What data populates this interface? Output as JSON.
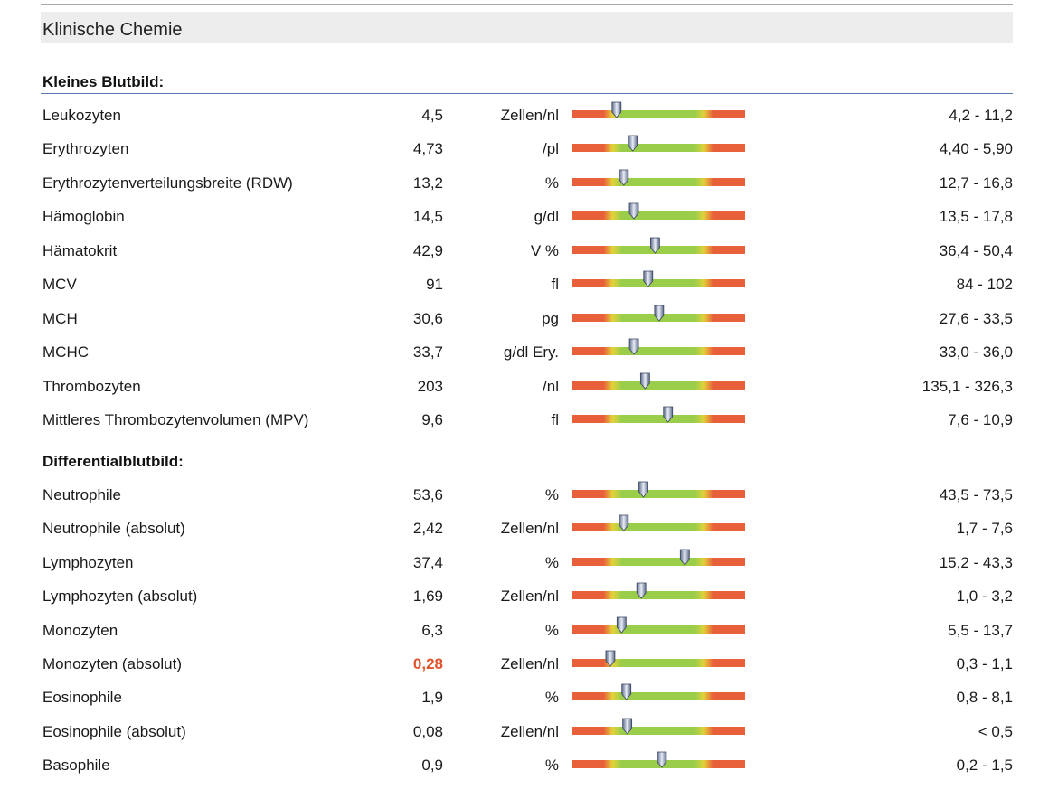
{
  "header": {
    "title": "Klinische Chemie"
  },
  "sections": [
    {
      "title": "Kleines Blutbild:",
      "rows": [
        {
          "name": "Leukozyten",
          "value": "4,5",
          "unit": "Zellen/nl",
          "ref": "4,2 - 11,2",
          "low": 4.2,
          "high": 11.2,
          "num": 4.5,
          "flag": false
        },
        {
          "name": "Erythrozyten",
          "value": "4,73",
          "unit": "/pl",
          "ref": "4,40 - 5,90",
          "low": 4.4,
          "high": 5.9,
          "num": 4.73,
          "flag": false
        },
        {
          "name": "Erythrozytenverteilungsbreite (RDW)",
          "value": "13,2",
          "unit": "%",
          "ref": "12,7 - 16,8",
          "low": 12.7,
          "high": 16.8,
          "num": 13.2,
          "flag": false
        },
        {
          "name": "Hämoglobin",
          "value": "14,5",
          "unit": "g/dl",
          "ref": "13,5 - 17,8",
          "low": 13.5,
          "high": 17.8,
          "num": 14.5,
          "flag": false
        },
        {
          "name": "Hämatokrit",
          "value": "42,9",
          "unit": "V %",
          "ref": "36,4 - 50,4",
          "low": 36.4,
          "high": 50.4,
          "num": 42.9,
          "flag": false
        },
        {
          "name": "MCV",
          "value": "91",
          "unit": "fl",
          "ref": "84 - 102",
          "low": 84,
          "high": 102,
          "num": 91,
          "flag": false
        },
        {
          "name": "MCH",
          "value": "30,6",
          "unit": "pg",
          "ref": "27,6 - 33,5",
          "low": 27.6,
          "high": 33.5,
          "num": 30.6,
          "flag": false
        },
        {
          "name": "MCHC",
          "value": "33,7",
          "unit": "g/dl Ery.",
          "ref": "33,0 - 36,0",
          "low": 33.0,
          "high": 36.0,
          "num": 33.7,
          "flag": false
        },
        {
          "name": "Thrombozyten",
          "value": "203",
          "unit": "/nl",
          "ref": "135,1 - 326,3",
          "low": 135.1,
          "high": 326.3,
          "num": 203,
          "flag": false
        },
        {
          "name": "Mittleres Thrombozytenvolumen (MPV)",
          "value": "9,6",
          "unit": "fl",
          "ref": "7,6 - 10,9",
          "low": 7.6,
          "high": 10.9,
          "num": 9.6,
          "flag": false
        }
      ]
    },
    {
      "title": "Differentialblutbild:",
      "rows": [
        {
          "name": "Neutrophile",
          "value": "53,6",
          "unit": "%",
          "ref": "43,5 - 73,5",
          "low": 43.5,
          "high": 73.5,
          "num": 53.6,
          "flag": false
        },
        {
          "name": "Neutrophile (absolut)",
          "value": "2,42",
          "unit": "Zellen/nl",
          "ref": "1,7 - 7,6",
          "low": 1.7,
          "high": 7.6,
          "num": 2.42,
          "flag": false
        },
        {
          "name": "Lymphozyten",
          "value": "37,4",
          "unit": "%",
          "ref": "15,2 - 43,3",
          "low": 15.2,
          "high": 43.3,
          "num": 37.4,
          "flag": false
        },
        {
          "name": "Lymphozyten (absolut)",
          "value": "1,69",
          "unit": "Zellen/nl",
          "ref": "1,0 - 3,2",
          "low": 1.0,
          "high": 3.2,
          "num": 1.69,
          "flag": false
        },
        {
          "name": "Monozyten",
          "value": "6,3",
          "unit": "%",
          "ref": "5,5 - 13,7",
          "low": 5.5,
          "high": 13.7,
          "num": 6.3,
          "flag": false
        },
        {
          "name": "Monozyten (absolut)",
          "value": "0,28",
          "unit": "Zellen/nl",
          "ref": "0,3 - 1,1",
          "low": 0.3,
          "high": 1.1,
          "num": 0.28,
          "flag": true
        },
        {
          "name": "Eosinophile",
          "value": "1,9",
          "unit": "%",
          "ref": "0,8 - 8,1",
          "low": 0.8,
          "high": 8.1,
          "num": 1.9,
          "flag": false
        },
        {
          "name": "Eosinophile (absolut)",
          "value": "0,08",
          "unit": "Zellen/nl",
          "ref": "< 0,5",
          "low": 0,
          "high": 0.5,
          "num": 0.08,
          "flag": false
        },
        {
          "name": "Basophile",
          "value": "0,9",
          "unit": "%",
          "ref": "0,2 - 1,5",
          "low": 0.2,
          "high": 1.5,
          "num": 0.9,
          "flag": false
        }
      ]
    }
  ],
  "colors": {
    "red": "#e8603a",
    "green": "#9acd4a",
    "yellow": "#e3d23a",
    "flag": "#e2532b"
  }
}
